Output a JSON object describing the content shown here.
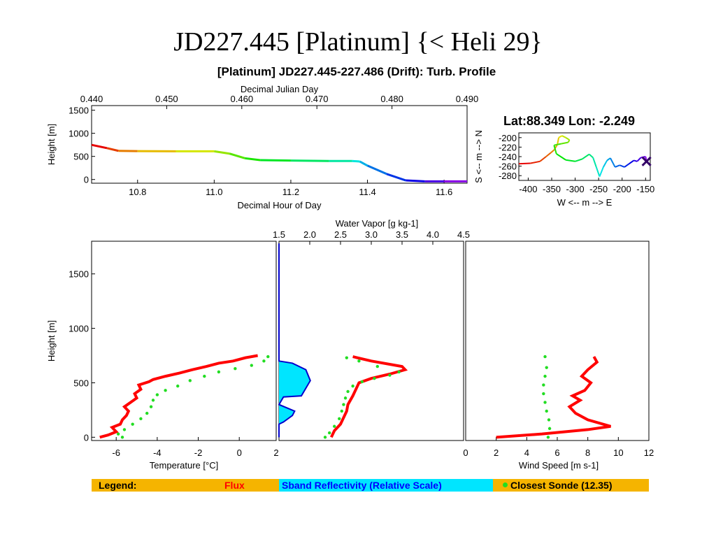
{
  "slide": {
    "title": "JD227.445 [Platinum] {< Heli 29}"
  },
  "plot_title": "[Platinum] JD227.445-227.486 (Drift): Turb. Profile",
  "position_readout": "Lat:88.349 Lon:  -2.249",
  "legend": {
    "label": "Legend:",
    "flux": "Flux",
    "sband": "Sband Reflectivity (Relative Scale)",
    "sonde": "Closest Sonde (12.35)"
  },
  "colors": {
    "flux": "#ff0000",
    "sonde": "#22dd22",
    "sband_fill": "#00e5ff",
    "sband_line": "#0000cc",
    "legend_bg": "#f5b400"
  },
  "chart_data": [
    {
      "id": "time_series",
      "type": "line",
      "title": "",
      "xlabel": "Decimal Hour of Day",
      "x2label": "Decimal Julian Day",
      "ylabel": "Height [m]",
      "xlim": [
        10.68,
        11.66
      ],
      "ylim": [
        -80,
        1600
      ],
      "xticks": [
        10.8,
        11.0,
        11.2,
        11.4,
        11.6
      ],
      "x2ticks": [
        "0.440",
        "0.450",
        "0.460",
        "0.470",
        "0.480",
        "0.490"
      ],
      "yticks": [
        0,
        500,
        1000,
        1500
      ],
      "color_scale": "rainbow (red→violet) by time",
      "x": [
        10.68,
        10.72,
        10.75,
        10.8,
        10.9,
        11.0,
        11.04,
        11.08,
        11.12,
        11.2,
        11.3,
        11.36,
        11.38,
        11.4,
        11.45,
        11.5,
        11.55,
        11.6,
        11.66
      ],
      "y": [
        750,
        680,
        620,
        615,
        610,
        610,
        560,
        460,
        420,
        410,
        400,
        400,
        390,
        300,
        120,
        -20,
        -40,
        -40,
        -40
      ]
    },
    {
      "id": "track_map",
      "type": "line",
      "xlabel": "W <-- m --> E",
      "ylabel": "S <-- m --> N",
      "xlim": [
        -420,
        -140
      ],
      "ylim": [
        -290,
        -190
      ],
      "xticks": [
        "-400",
        "-350",
        "-300",
        "-250",
        "-200",
        "-150"
      ],
      "yticks": [
        "-200",
        "-220",
        "-240",
        "-260",
        "-280"
      ],
      "color_scale": "rainbow (red→violet) by time",
      "x": [
        -420,
        -395,
        -375,
        -362,
        -352,
        -345,
        -338,
        -335,
        -328,
        -320,
        -312,
        -315,
        -330,
        -345,
        -340,
        -320,
        -300,
        -285,
        -270,
        -262,
        -255,
        -248,
        -240,
        -232,
        -225,
        -215,
        -205,
        -195,
        -185,
        -175,
        -168,
        -160,
        -150,
        -148
      ],
      "y": [
        -255,
        -254,
        -250,
        -240,
        -232,
        -226,
        -215,
        -200,
        -196,
        -200,
        -205,
        -210,
        -213,
        -216,
        -234,
        -247,
        -250,
        -245,
        -235,
        -242,
        -262,
        -282,
        -262,
        -248,
        -243,
        -262,
        -258,
        -262,
        -255,
        -248,
        -250,
        -242,
        -240,
        -250
      ]
    },
    {
      "id": "temperature_profile",
      "type": "line",
      "xlabel": "Temperature [°C]",
      "ylabel": "Height [m]",
      "xlim": [
        -7.2,
        1.8
      ],
      "ylim": [
        -30,
        1800
      ],
      "xticks": [
        -6,
        -4,
        -2,
        0
      ],
      "yticks": [
        0,
        500,
        1000,
        1500
      ],
      "series": [
        {
          "name": "Flux",
          "x": [
            -6.8,
            -6.4,
            -6.0,
            -6.2,
            -5.8,
            -5.7,
            -5.5,
            -5.4,
            -5.6,
            -5.3,
            -5.0,
            -5.1,
            -4.8,
            -4.9,
            -4.4,
            -4.2,
            -3.6,
            -2.9,
            -2.3,
            -1.6,
            -1.0,
            -0.3,
            0.3,
            0.9
          ],
          "y": [
            0,
            20,
            50,
            90,
            120,
            160,
            200,
            240,
            280,
            320,
            360,
            400,
            440,
            480,
            510,
            530,
            560,
            590,
            620,
            650,
            680,
            700,
            730,
            750
          ]
        },
        {
          "name": "Closest Sonde (12.35)",
          "x": [
            -5.7,
            -5.9,
            -5.6,
            -5.2,
            -4.8,
            -4.5,
            -4.3,
            -4.2,
            -4.0,
            -3.6,
            -3.0,
            -2.4,
            -1.7,
            -1.0,
            -0.2,
            0.6,
            1.2,
            1.4
          ],
          "y": [
            0,
            30,
            70,
            120,
            170,
            220,
            280,
            340,
            390,
            430,
            470,
            520,
            560,
            600,
            630,
            660,
            700,
            740
          ]
        }
      ]
    },
    {
      "id": "water_vapor_profile",
      "type": "line",
      "x2label": "Water Vapor [g kg-1]",
      "xlim": [
        1.5,
        4.5
      ],
      "x2ticks": [
        "1.5",
        "2.0",
        "2.5",
        "3.0",
        "3.5",
        "4.0",
        "4.5"
      ],
      "xticks_bottom": [
        "2"
      ],
      "ylim": [
        -30,
        1800
      ],
      "series": [
        {
          "name": "Flux",
          "x": [
            2.35,
            2.4,
            2.5,
            2.55,
            2.6,
            2.62,
            2.7,
            2.75,
            2.8,
            3.0,
            3.3,
            3.55,
            3.5,
            3.0,
            2.7
          ],
          "y": [
            0,
            60,
            120,
            180,
            240,
            300,
            380,
            440,
            500,
            540,
            580,
            620,
            650,
            700,
            740
          ]
        },
        {
          "name": "Closest Sonde (12.35)",
          "x": [
            2.25,
            2.32,
            2.4,
            2.48,
            2.52,
            2.55,
            2.58,
            2.62,
            2.7,
            2.85,
            3.05,
            3.3,
            3.45,
            3.1,
            2.8,
            2.6
          ],
          "y": [
            0,
            40,
            100,
            170,
            240,
            300,
            360,
            420,
            470,
            510,
            540,
            570,
            600,
            650,
            700,
            730
          ]
        },
        {
          "name": "Sband Reflectivity (Relative Scale)",
          "x": [
            0,
            0,
            0.06,
            0.12,
            0.14,
            0.1,
            0.02,
            0.0,
            0.07,
            0.06,
            0.02,
            0.0,
            0.0
          ],
          "y": [
            1780,
            700,
            680,
            620,
            520,
            380,
            370,
            300,
            240,
            200,
            140,
            120,
            0
          ]
        }
      ]
    },
    {
      "id": "wind_speed_profile",
      "type": "line",
      "xlabel": "Wind Speed [m s-1]",
      "xlim": [
        0,
        12
      ],
      "xticks": [
        0,
        2,
        4,
        6,
        8,
        10,
        12
      ],
      "ylim": [
        -30,
        1800
      ],
      "series": [
        {
          "name": "Flux",
          "x": [
            2.0,
            5.0,
            8.0,
            9.5,
            8.0,
            7.2,
            6.8,
            7.5,
            7.0,
            7.8,
            8.2,
            7.6,
            8.0,
            8.6,
            8.4
          ],
          "y": [
            0,
            30,
            70,
            100,
            160,
            220,
            280,
            340,
            380,
            430,
            500,
            560,
            620,
            690,
            740
          ]
        },
        {
          "name": "Closest Sonde (12.35)",
          "x": [
            5.4,
            5.5,
            5.45,
            5.3,
            5.2,
            5.1,
            5.1,
            5.2,
            5.3,
            5.2
          ],
          "y": [
            0,
            80,
            160,
            240,
            320,
            400,
            480,
            560,
            640,
            740
          ]
        }
      ]
    }
  ],
  "axis_text": {
    "ts_top_label": "Decimal Julian Day",
    "ts_bottom_label": "Decimal Hour of Day",
    "ts_ylabel": "Height [m]",
    "map_xlabel": "W <-- m --> E",
    "map_ylabel": "S <-- m --> N",
    "temp_xlabel": "Temperature [°C]",
    "prof_ylabel": "Height [m]",
    "wv_top_label": "Water Vapor [g kg-1]",
    "wind_xlabel": "Wind Speed [m s-1]"
  }
}
